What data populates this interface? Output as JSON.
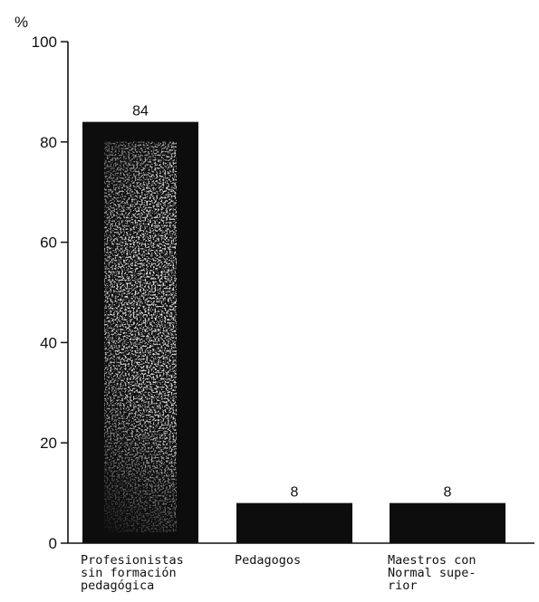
{
  "chart_data": {
    "type": "bar",
    "ylabel": "%",
    "ylim": [
      0,
      100
    ],
    "yticks": [
      0,
      20,
      40,
      60,
      80,
      100
    ],
    "grid": false,
    "categories": [
      "Profesionistas\nsin formación\npedagógica",
      "Pedagogos",
      "Maestros con\nNormal supe-\nrior"
    ],
    "values": [
      84,
      8,
      8
    ],
    "data_labels": [
      "84",
      "8",
      "8"
    ],
    "colors": {
      "bar": "#0d0d0d",
      "bar_speckle": "#d8d8d8",
      "axis": "#111111"
    }
  }
}
